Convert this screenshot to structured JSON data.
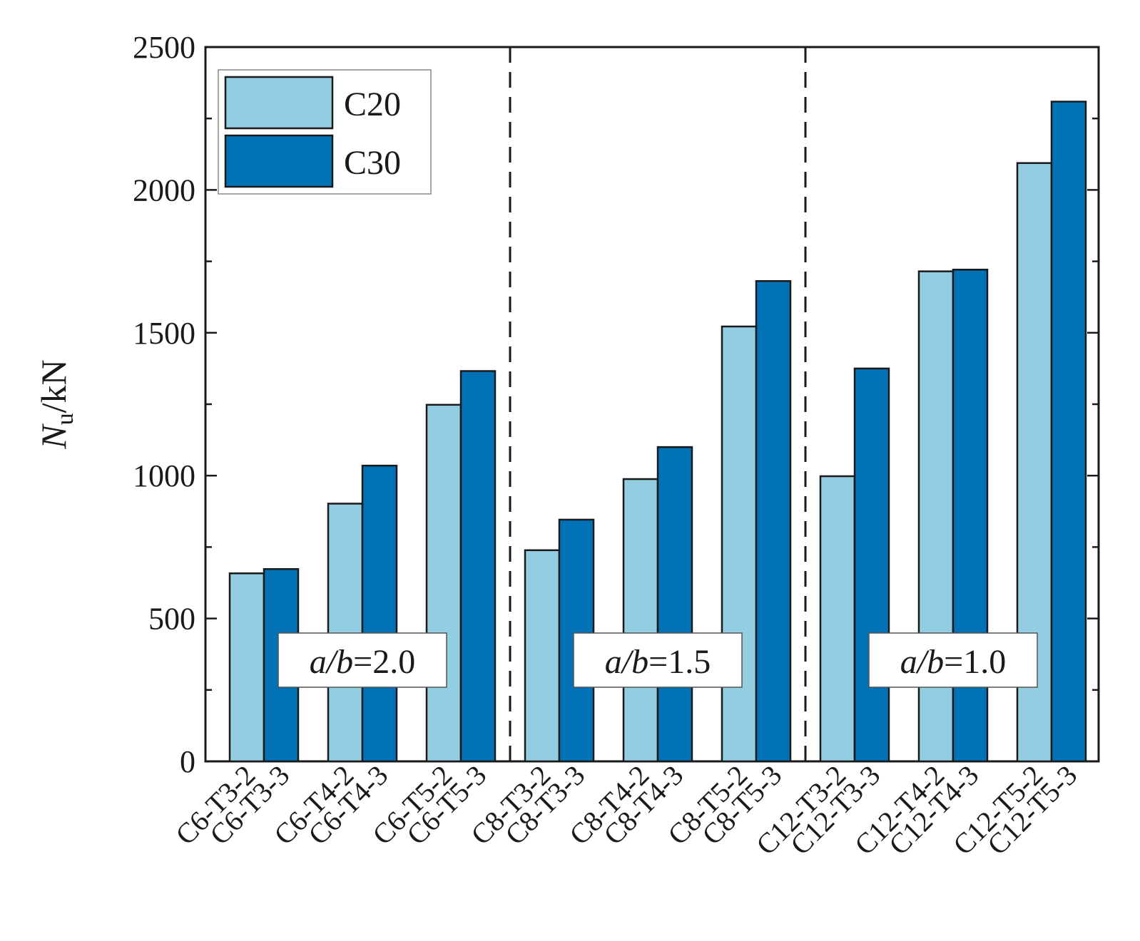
{
  "chart_data": {
    "type": "bar",
    "title": "",
    "xlabel": "",
    "ylabel": {
      "italic": "N",
      "sub": "u",
      "rest": "/kN"
    },
    "ylim": [
      0,
      2500
    ],
    "yticks": [
      0,
      500,
      1000,
      1500,
      2000,
      2500
    ],
    "y_minor_step": 250,
    "grid": false,
    "legend_position": "top-left",
    "groups": [
      {
        "annotation": {
          "italic": "a/b",
          "rest": "=2.0"
        },
        "pairs": [
          {
            "labels": [
              "C6-T3-2",
              "C6-T3-3"
            ],
            "values": [
              658,
              673
            ]
          },
          {
            "labels": [
              "C6-T4-2",
              "C6-T4-3"
            ],
            "values": [
              902,
              1035
            ]
          },
          {
            "labels": [
              "C6-T5-2",
              "C6-T5-3"
            ],
            "values": [
              1248,
              1366
            ]
          }
        ]
      },
      {
        "annotation": {
          "italic": "a/b",
          "rest": "=1.5"
        },
        "pairs": [
          {
            "labels": [
              "C8-T3-2",
              "C8-T3-3"
            ],
            "values": [
              739,
              846
            ]
          },
          {
            "labels": [
              "C8-T4-2",
              "C8-T4-3"
            ],
            "values": [
              988,
              1100
            ]
          },
          {
            "labels": [
              "C8-T5-2",
              "C8-T5-3"
            ],
            "values": [
              1522,
              1681
            ]
          }
        ]
      },
      {
        "annotation": {
          "italic": "a/b",
          "rest": "=1.0"
        },
        "pairs": [
          {
            "labels": [
              "C12-T3-2",
              "C12-T3-3"
            ],
            "values": [
              998,
              1375
            ]
          },
          {
            "labels": [
              "C12-T4-2",
              "C12-T4-3"
            ],
            "values": [
              1715,
              1721
            ]
          },
          {
            "labels": [
              "C12-T5-2",
              "C12-T5-3"
            ],
            "values": [
              2094,
              2309
            ]
          }
        ]
      }
    ],
    "series": [
      {
        "name": "C20",
        "color": "#92cde1"
      },
      {
        "name": "C30",
        "color": "#0072b5"
      }
    ]
  }
}
